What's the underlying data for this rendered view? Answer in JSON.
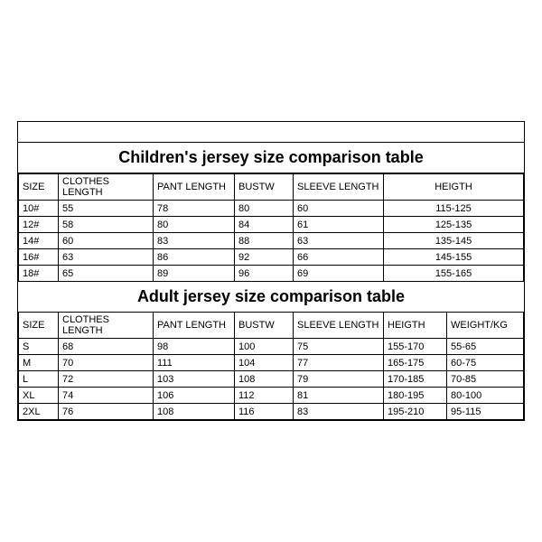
{
  "children": {
    "title": "Children's jersey size comparison table",
    "columns": [
      "SIZE",
      "CLOTHES LENGTH",
      "PANT LENGTH",
      "BUSTW",
      "SLEEVE LENGTH",
      "HEIGTH"
    ],
    "rows": [
      [
        "10#",
        "55",
        "78",
        "80",
        "60",
        "115-125"
      ],
      [
        "12#",
        "58",
        "80",
        "84",
        "61",
        "125-135"
      ],
      [
        "14#",
        "60",
        "83",
        "88",
        "63",
        "135-145"
      ],
      [
        "16#",
        "63",
        "86",
        "92",
        "66",
        "145-155"
      ],
      [
        "18#",
        "65",
        "89",
        "96",
        "69",
        "155-165"
      ]
    ]
  },
  "adult": {
    "title": "Adult jersey size comparison table",
    "columns": [
      "SIZE",
      "CLOTHES LENGTH",
      "PANT LENGTH",
      "BUSTW",
      "SLEEVE LENGTH",
      "HEIGTH",
      "WEIGHT/KG"
    ],
    "rows": [
      [
        "S",
        "68",
        "98",
        "100",
        "75",
        "155-170",
        "55-65"
      ],
      [
        "M",
        "70",
        "111",
        "104",
        "77",
        "165-175",
        "60-75"
      ],
      [
        "L",
        "72",
        "103",
        "108",
        "79",
        "170-185",
        "70-85"
      ],
      [
        "XL",
        "74",
        "106",
        "112",
        "81",
        "180-195",
        "80-100"
      ],
      [
        "2XL",
        "76",
        "108",
        "116",
        "83",
        "195-210",
        "95-115"
      ]
    ]
  },
  "style": {
    "border_color": "#000000",
    "background_color": "#ffffff",
    "title_fontsize": 18,
    "cell_fontsize": 11
  }
}
